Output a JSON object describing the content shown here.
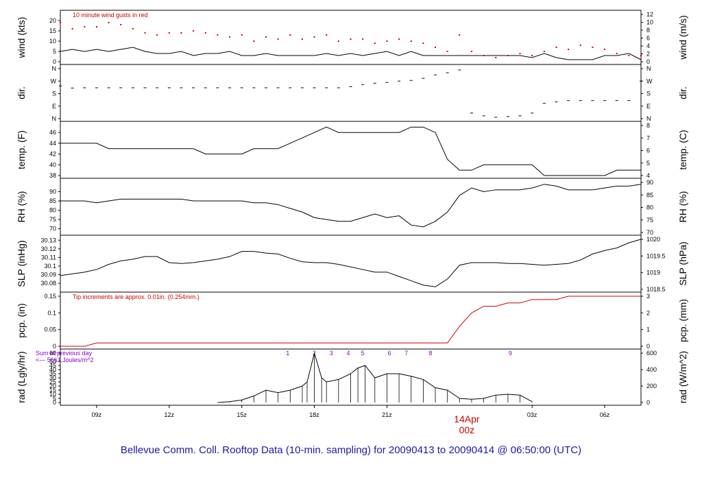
{
  "title": "Bellevue Comm. Coll. Rooftop Data (10-min. sampling) for 20090413  to  20090414 @ 06:50:00  (UTC)",
  "date_marker": {
    "day": "14Apr",
    "hour": "00z"
  },
  "x_ticks": [
    "09z",
    "12z",
    "15z",
    "18z",
    "21z",
    "03z",
    "06z"
  ],
  "colors": {
    "line": "#000000",
    "gust": "#cc0000",
    "precip": "#cc0000",
    "annot": "#8800cc",
    "footer": "#1a1aa6"
  },
  "chart_data": [
    {
      "type": "line",
      "panel": "wind",
      "ylabel": "wind (kts)",
      "y2label": "wind (m/s)",
      "ylim": [
        0,
        23
      ],
      "yticks": [
        0,
        5,
        10,
        15,
        20
      ],
      "y2ticks": [
        0,
        2,
        4,
        6,
        8,
        10,
        12
      ],
      "annotation": "10  minute wind gusts in red",
      "x_hours": [
        0,
        0.5,
        1,
        1.5,
        2,
        2.5,
        3,
        3.5,
        4,
        4.5,
        5,
        5.5,
        6,
        6.5,
        7,
        7.5,
        8,
        8.5,
        9,
        9.5,
        10,
        10.5,
        11,
        11.5,
        12,
        12.5,
        13,
        13.5,
        14,
        14.5,
        15,
        15.5,
        16,
        16.5,
        17,
        17.5,
        18,
        18.5,
        19,
        19.5,
        20,
        20.5,
        21,
        21.5,
        22,
        22.5,
        23,
        23.5,
        24
      ],
      "series": [
        {
          "values": [
            5,
            6,
            5,
            6,
            5,
            6,
            7,
            5,
            4,
            4,
            5,
            3,
            4,
            4,
            5,
            3,
            3,
            4,
            3,
            3,
            3,
            3,
            4,
            3,
            4,
            3,
            4,
            5,
            3,
            5,
            3,
            3,
            3,
            3,
            3,
            3,
            3,
            3,
            3,
            2,
            4,
            2,
            1,
            1,
            1,
            3,
            3,
            4,
            1
          ]
        },
        {
          "name": "gust",
          "style": "points",
          "values": [
            19,
            16,
            17,
            17,
            19,
            18,
            16,
            14,
            13,
            14,
            14,
            15,
            14,
            13,
            12,
            13,
            10,
            12,
            11,
            13,
            11,
            12,
            13,
            10,
            11,
            11,
            9,
            10,
            11,
            10,
            9,
            7,
            5,
            13,
            5,
            3,
            2,
            3,
            4,
            3,
            5,
            7,
            6,
            8,
            7,
            6,
            4,
            3,
            3
          ]
        }
      ]
    },
    {
      "type": "scatter",
      "panel": "dir",
      "ylabel": "dir.",
      "y2label": "dir.",
      "yticks": [
        "N",
        "E",
        "S",
        "W",
        "N"
      ],
      "y2ticks": [
        "N",
        "E",
        "S",
        "W",
        "N"
      ],
      "ylim": [
        0,
        360
      ],
      "x_hours": [
        0,
        0.5,
        1,
        1.5,
        2,
        2.5,
        3,
        3.5,
        4,
        4.5,
        5,
        5.5,
        6,
        6.5,
        7,
        7.5,
        8,
        8.5,
        9,
        9.5,
        10,
        10.5,
        11,
        11.5,
        12,
        12.5,
        13,
        13.5,
        14,
        14.5,
        15,
        15.5,
        16,
        16.5,
        17,
        17.5,
        18,
        18.5,
        19,
        19.5,
        20,
        20.5,
        21,
        21.5,
        22,
        22.5,
        23,
        23.5,
        24
      ],
      "values": [
        235,
        220,
        222,
        222,
        222,
        222,
        222,
        222,
        222,
        222,
        222,
        222,
        222,
        222,
        222,
        222,
        222,
        222,
        222,
        222,
        222,
        222,
        222,
        222,
        230,
        245,
        255,
        260,
        270,
        275,
        290,
        315,
        330,
        350,
        40,
        20,
        10,
        15,
        20,
        40,
        110,
        120,
        130,
        130,
        130,
        130,
        130,
        130,
        270
      ]
    },
    {
      "type": "line",
      "panel": "temp",
      "ylabel": "temp. (F)",
      "y2label": "temp. (C)",
      "ylim": [
        38,
        47.3
      ],
      "yticks": [
        38,
        40,
        42,
        44,
        46
      ],
      "y2ticks": [
        4,
        5,
        6,
        7,
        8
      ],
      "x_hours": [
        0,
        0.5,
        1,
        1.5,
        2,
        2.5,
        3,
        3.5,
        4,
        4.5,
        5,
        5.5,
        6,
        6.5,
        7,
        7.5,
        8,
        8.5,
        9,
        9.5,
        10,
        10.5,
        11,
        11.5,
        12,
        12.5,
        13,
        13.5,
        14,
        14.5,
        15,
        15.5,
        16,
        16.5,
        17,
        17.5,
        18,
        18.5,
        19,
        19.5,
        20,
        20.5,
        21,
        21.5,
        22,
        22.5,
        23,
        23.5,
        24
      ],
      "values": [
        44,
        44,
        44,
        44,
        43,
        43,
        43,
        43,
        43,
        43,
        43,
        43,
        42,
        42,
        42,
        42,
        43,
        43,
        43,
        44,
        45,
        46,
        47,
        46,
        46,
        46,
        46,
        46,
        46,
        47,
        47,
        46,
        41,
        39,
        39,
        40,
        40,
        40,
        40,
        40,
        38,
        38,
        38,
        38,
        38,
        38,
        39,
        39,
        39
      ]
    },
    {
      "type": "line",
      "panel": "rh",
      "ylabel": "RH (%)",
      "y2label": "RH (%)",
      "ylim": [
        68,
        95
      ],
      "yticks": [
        70,
        75,
        80,
        85,
        90
      ],
      "y2ticks": [
        70,
        75,
        80,
        85,
        90
      ],
      "x_hours": [
        0,
        0.5,
        1,
        1.5,
        2,
        2.5,
        3,
        3.5,
        4,
        4.5,
        5,
        5.5,
        6,
        6.5,
        7,
        7.5,
        8,
        8.5,
        9,
        9.5,
        10,
        10.5,
        11,
        11.5,
        12,
        12.5,
        13,
        13.5,
        14,
        14.5,
        15,
        15.5,
        16,
        16.5,
        17,
        17.5,
        18,
        18.5,
        19,
        19.5,
        20,
        20.5,
        21,
        21.5,
        22,
        22.5,
        23,
        23.5,
        24
      ],
      "values": [
        85,
        85,
        85,
        84,
        85,
        86,
        86,
        86,
        86,
        86,
        86,
        85,
        85,
        85,
        85,
        85,
        84,
        84,
        83,
        81,
        79,
        76,
        75,
        74,
        74,
        76,
        78,
        76,
        77,
        72,
        71,
        74,
        79,
        88,
        92,
        90,
        91,
        91,
        91,
        92,
        94,
        93,
        91,
        91,
        91,
        92,
        93,
        93,
        94
      ]
    },
    {
      "type": "line",
      "panel": "slp",
      "ylabel": "SLP (inHg)",
      "y2label": "SLP (hPa)",
      "ylim": [
        30.073,
        30.131
      ],
      "yticks": [
        30.08,
        30.09,
        30.1,
        30.11,
        30.12,
        30.13
      ],
      "y2ticks": [
        1018.5,
        1019,
        1019.5,
        1020
      ],
      "x_hours": [
        0,
        0.5,
        1,
        1.5,
        2,
        2.5,
        3,
        3.5,
        4,
        4.5,
        5,
        5.5,
        6,
        6.5,
        7,
        7.5,
        8,
        8.5,
        9,
        9.5,
        10,
        10.5,
        11,
        11.5,
        12,
        12.5,
        13,
        13.5,
        14,
        14.5,
        15,
        15.5,
        16,
        16.5,
        17,
        17.5,
        18,
        18.5,
        19,
        19.5,
        20,
        20.5,
        21,
        21.5,
        22,
        22.5,
        23,
        23.5,
        24
      ],
      "values": [
        30.089,
        30.091,
        30.093,
        30.096,
        30.102,
        30.106,
        30.108,
        30.111,
        30.111,
        30.104,
        30.103,
        30.104,
        30.106,
        30.108,
        30.111,
        30.117,
        30.117,
        30.115,
        30.114,
        30.109,
        30.105,
        30.104,
        30.104,
        30.102,
        30.099,
        30.096,
        30.093,
        30.093,
        30.088,
        30.083,
        30.078,
        30.076,
        30.085,
        30.101,
        30.104,
        30.104,
        30.104,
        30.103,
        30.103,
        30.102,
        30.101,
        30.102,
        30.103,
        30.107,
        30.114,
        30.118,
        30.121,
        30.127,
        30.131
      ]
    },
    {
      "type": "line",
      "panel": "pcp",
      "ylabel": "pcp. (in)",
      "y2label": "pcp. (mm)",
      "ylim": [
        0,
        0.15
      ],
      "yticks": [
        0,
        0.05,
        0.1,
        0.15
      ],
      "y2ticks": [
        0,
        1,
        2,
        3
      ],
      "annotation": "Tip increments are approx. 0.01in. (0.254mm.)",
      "x_hours": [
        0,
        0.5,
        1,
        1.5,
        2,
        2.5,
        3,
        3.5,
        4,
        4.5,
        5,
        5.5,
        6,
        6.5,
        7,
        7.5,
        8,
        8.5,
        9,
        9.5,
        10,
        10.5,
        11,
        11.5,
        12,
        12.5,
        13,
        13.5,
        14,
        14.5,
        15,
        15.5,
        16,
        16.5,
        17,
        17.5,
        18,
        18.5,
        19,
        19.5,
        20,
        20.5,
        21,
        21.5,
        22,
        22.5,
        23,
        23.5,
        24
      ],
      "values": [
        0,
        0,
        0,
        0.01,
        0.01,
        0.01,
        0.01,
        0.01,
        0.01,
        0.01,
        0.01,
        0.01,
        0.01,
        0.01,
        0.01,
        0.01,
        0.01,
        0.01,
        0.01,
        0.01,
        0.01,
        0.01,
        0.01,
        0.01,
        0.01,
        0.01,
        0.01,
        0.01,
        0.01,
        0.01,
        0.01,
        0.01,
        0.01,
        0.06,
        0.1,
        0.12,
        0.12,
        0.13,
        0.13,
        0.14,
        0.14,
        0.14,
        0.15,
        0.15,
        0.15,
        0.15,
        0.15,
        0.15,
        0.15
      ]
    },
    {
      "type": "area",
      "panel": "rad",
      "ylabel": "rad (Lgly/hr)",
      "y2label": "rad (W/m^2)",
      "ylim": [
        0,
        60
      ],
      "yticks": [
        0,
        5,
        10,
        15,
        20,
        25,
        30,
        35,
        40,
        45,
        50,
        60
      ],
      "y2ticks": [
        0,
        200,
        400,
        600
      ],
      "annotation_lines": [
        "Sum of previous day",
        "<--- 5661.Joules/m^2"
      ],
      "markers": [
        "1",
        "2",
        "3",
        "4",
        "5",
        "6",
        "7",
        "8",
        "9"
      ],
      "marker_hours": [
        9.4,
        10.5,
        11.2,
        11.9,
        12.5,
        13.6,
        14.3,
        15.3,
        18.6
      ],
      "x_hours": [
        6.5,
        7,
        7.5,
        8,
        8.5,
        9,
        9.5,
        10,
        10.2,
        10.5,
        10.8,
        11,
        11.5,
        12,
        12.3,
        12.6,
        13,
        13.5,
        14,
        14.5,
        15,
        15.5,
        16,
        16.5,
        17,
        17.5,
        18,
        18.5,
        19,
        19.5
      ],
      "values": [
        0,
        1,
        3,
        8,
        15,
        12,
        15,
        20,
        25,
        60,
        30,
        25,
        28,
        35,
        42,
        45,
        30,
        35,
        35,
        32,
        28,
        18,
        15,
        5,
        4,
        5,
        9,
        10,
        9,
        1
      ]
    }
  ]
}
